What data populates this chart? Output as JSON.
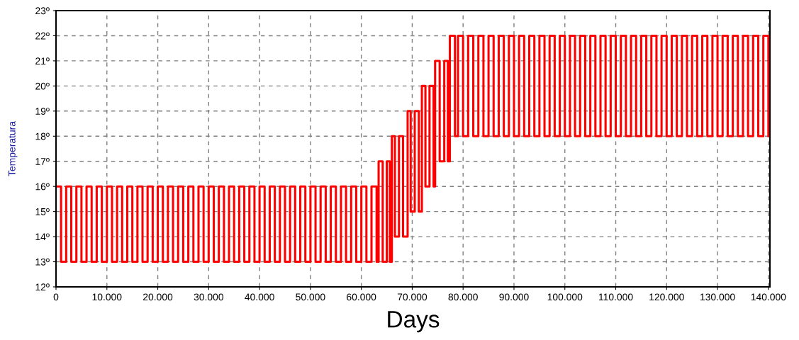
{
  "chart_data": {
    "type": "step",
    "xlabel": "Days",
    "ylabel": "Temperatura",
    "grid": true,
    "xlim": [
      0,
      140300
    ],
    "ylim": [
      12,
      23
    ],
    "xticks": [
      0,
      {
        "value": 10000,
        "label": "10.000"
      },
      {
        "value": 20000,
        "label": "20.000"
      },
      {
        "value": 30000,
        "label": "30.000"
      },
      {
        "value": 40000,
        "label": "40.000"
      },
      {
        "value": 50000,
        "label": "50.000"
      },
      {
        "value": 60000,
        "label": "60.000"
      },
      {
        "value": 70000,
        "label": "70.000"
      },
      {
        "value": 80000,
        "label": "80.000"
      },
      {
        "value": 90000,
        "label": "90.000"
      },
      {
        "value": 100000,
        "label": "100.000"
      },
      {
        "value": 110000,
        "label": "110.000"
      },
      {
        "value": 120000,
        "label": "120.000"
      },
      {
        "value": 130000,
        "label": "130.000"
      },
      {
        "value": 140000,
        "label": "140.000"
      }
    ],
    "yticks": [
      {
        "value": 12,
        "label": "12º"
      },
      {
        "value": 13,
        "label": "13º"
      },
      {
        "value": 14,
        "label": "14º"
      },
      {
        "value": 15,
        "label": "15º"
      },
      {
        "value": 16,
        "label": "16º"
      },
      {
        "value": 17,
        "label": "17º"
      },
      {
        "value": 18,
        "label": "18º"
      },
      {
        "value": 19,
        "label": "19º"
      },
      {
        "value": 20,
        "label": "20º"
      },
      {
        "value": 21,
        "label": "21º"
      },
      {
        "value": 22,
        "label": "22º"
      },
      {
        "value": 23,
        "label": "23º"
      }
    ],
    "series": [
      {
        "color": "#ff0000",
        "x": [
          0,
          1000,
          2000,
          3000,
          4000,
          5000,
          6000,
          7000,
          8000,
          9000,
          10000,
          11000,
          12000,
          13000,
          14000,
          15000,
          16000,
          17000,
          18000,
          19000,
          20000,
          21000,
          22000,
          23000,
          24000,
          25000,
          26000,
          27000,
          28000,
          29000,
          30000,
          31000,
          32000,
          33000,
          34000,
          35000,
          36000,
          37000,
          38000,
          39000,
          40000,
          41000,
          42000,
          43000,
          44000,
          45000,
          46000,
          47000,
          48000,
          49000,
          50000,
          51000,
          52000,
          53000,
          54000,
          55000,
          56000,
          57000,
          58000,
          59000,
          60000,
          61000,
          62000,
          63000,
          63400,
          64200,
          65000,
          65600,
          66000,
          66600,
          67400,
          68200,
          69100,
          69700,
          70500,
          71300,
          71900,
          72600,
          73400,
          74200,
          74500,
          75400,
          76300,
          77000,
          77400,
          78400,
          79000,
          80000,
          81000,
          82000,
          83000,
          84000,
          85000,
          86000,
          87000,
          88000,
          89000,
          90000,
          91000,
          92000,
          93000,
          94000,
          95000,
          96000,
          97000,
          98000,
          99000,
          100000,
          101000,
          102000,
          103000,
          104000,
          105000,
          106000,
          107000,
          108000,
          109000,
          110000,
          111000,
          112000,
          113000,
          114000,
          115000,
          116000,
          117000,
          118000,
          119000,
          120000,
          121000,
          122000,
          123000,
          124000,
          125000,
          126000,
          127000,
          128000,
          129000,
          130000,
          131000,
          132000,
          133000,
          134000,
          135000,
          136000,
          137000,
          138000,
          139000,
          140000
        ],
        "values": [
          16,
          13,
          16,
          13,
          16,
          13,
          16,
          13,
          16,
          13,
          16,
          13,
          16,
          13,
          16,
          13,
          16,
          13,
          16,
          13,
          16,
          13,
          16,
          13,
          16,
          13,
          16,
          13,
          16,
          13,
          16,
          13,
          16,
          13,
          16,
          13,
          16,
          13,
          16,
          13,
          16,
          13,
          16,
          13,
          16,
          13,
          16,
          13,
          16,
          13,
          16,
          13,
          16,
          13,
          16,
          13,
          16,
          13,
          16,
          13,
          16,
          13,
          16,
          13,
          17,
          13,
          17,
          13,
          18,
          14,
          18,
          14,
          19,
          15,
          19,
          15,
          20,
          16,
          20,
          16,
          21,
          17,
          21,
          17,
          22,
          18,
          22,
          18,
          22,
          18,
          22,
          18,
          22,
          18,
          22,
          18,
          22,
          18,
          22,
          18,
          22,
          18,
          22,
          18,
          22,
          18,
          22,
          18,
          22,
          18,
          22,
          18,
          22,
          18,
          22,
          18,
          22,
          18,
          22,
          18,
          22,
          18,
          22,
          18,
          22,
          18,
          22,
          18,
          22,
          18,
          22,
          18,
          22,
          18,
          22,
          18,
          22,
          18,
          22,
          18,
          22,
          18,
          22,
          18,
          22,
          18,
          22,
          18
        ]
      }
    ]
  }
}
